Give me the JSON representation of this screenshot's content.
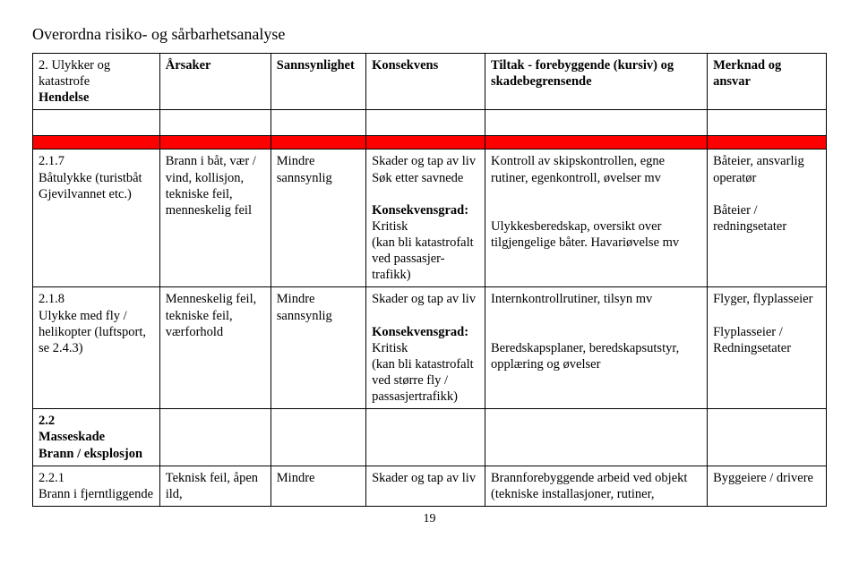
{
  "doc_title": "Overordna risiko- og sårbarhetsanalyse",
  "columns": {
    "a": "2. Ulykker og katastrofe Hendelse",
    "b": "Årsaker",
    "c": "Sannsynlighet",
    "d": "Konsekvens",
    "e": "Tiltak - forebyggende (kursiv) og skadebegrensende",
    "f": "Merknad og ansvar"
  },
  "rows": [
    {
      "a_head": "2.1.7",
      "a_body": "Båtulykke (turistbåt Gjevilvannet etc.)",
      "b": "Brann i båt, vær / vind, kollisjon, tekniske feil, menneskelig feil",
      "c": "Mindre sannsynlig",
      "d_pre": "Skader og tap av liv\nSøk etter savnede\n",
      "d_label": "Konsekvensgrad:",
      "d_post": "Kritisk\n(kan bli katastrofalt ved passasjer-trafikk)",
      "e": "Kontroll av skipskontrollen, egne rutiner, egenkontroll, øvelser mv\n\n\nUlykkesberedskap, oversikt over tilgjengelige båter. Havariøvelse mv",
      "f": "Båteier, ansvarlig operatør\n\nBåteier / redningsetater"
    },
    {
      "a_head": "2.1.8",
      "a_body": "Ulykke med fly / helikopter (luftsport, se 2.4.3)",
      "b": "Menneskelig feil, tekniske feil, værforhold",
      "c": "Mindre sannsynlig",
      "d_pre": "Skader og tap av liv\n",
      "d_label": "Konsekvensgrad:",
      "d_post": "Kritisk\n(kan bli katastrofalt ved større fly / passasjertrafikk)",
      "e": "Internkontrollrutiner, tilsyn mv\n\n\nBeredskapsplaner, beredskapsutstyr, opplæring og øvelser",
      "f": "Flyger, flyplasseier\n\nFlyplasseier / Redningsetater"
    },
    {
      "a_head": "2.2",
      "a_body": "Masseskade\nBrann / eksplosjon",
      "b": "",
      "c": "",
      "d_pre": "",
      "d_label": "",
      "d_post": "",
      "e": "",
      "f": ""
    },
    {
      "a_head": "2.2.1",
      "a_body": "Brann i fjerntliggende",
      "b": "Teknisk feil, åpen ild,",
      "c": "Mindre",
      "d_pre": "Skader og tap av liv",
      "d_label": "",
      "d_post": "",
      "e": "Brannforebyggende arbeid ved objekt (tekniske installasjoner, rutiner,",
      "f": "Byggeiere / drivere"
    }
  ],
  "page_number": "19",
  "colors": {
    "red": "#ff0000",
    "text": "#000000",
    "bg": "#ffffff"
  }
}
